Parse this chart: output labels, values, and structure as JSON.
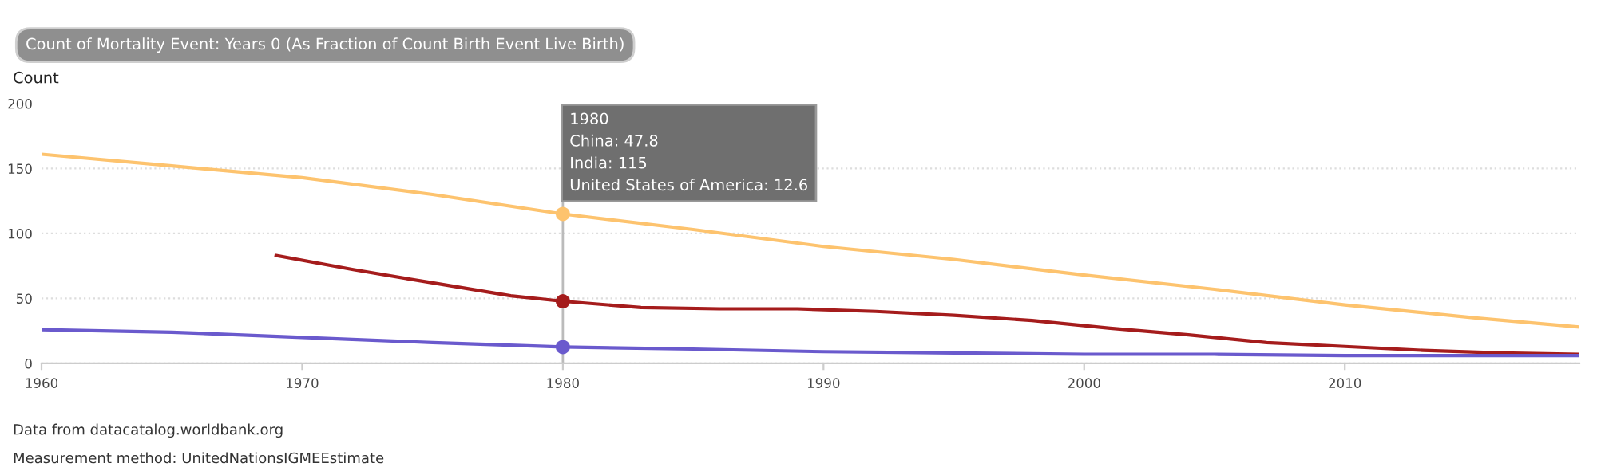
{
  "chart_data": {
    "type": "line",
    "title": "Count of Mortality Event: Years 0 (As Fraction of Count Birth Event Live Birth)",
    "ylabel": "Count",
    "xlim": [
      1960,
      2019
    ],
    "xticks": [
      1960,
      1970,
      1980,
      1990,
      2000,
      2010
    ],
    "ylim": [
      0,
      200
    ],
    "yticks": [
      0,
      50,
      100,
      150,
      200
    ],
    "grid": "y",
    "line_style": "solid",
    "ref_lines": [
      {
        "axis": "x",
        "value": 1980,
        "color": "#bbbbbb"
      }
    ],
    "annotations": [
      {
        "text": "1980\nChina: 47.8\nIndia: 115\nUnited States of America: 12.6",
        "x": 1980,
        "y": 200
      },
      "Data from datacatalog.worldbank.org",
      "Measurement method: UnitedNationsIGMEEstimate"
    ],
    "series": [
      {
        "color": "#fdc36e",
        "x": [
          1960,
          1965,
          1970,
          1975,
          1980,
          1985,
          1990,
          1995,
          2000,
          2005,
          2010,
          2015,
          2019
        ],
        "values": [
          161,
          152,
          143,
          130,
          115,
          103,
          90,
          80,
          68,
          57,
          45,
          35,
          28
        ]
      },
      {
        "color": "#a51c1c",
        "x": [
          1969,
          1972,
          1975,
          1978,
          1980,
          1983,
          1986,
          1989,
          1992,
          1995,
          1998,
          2001,
          2004,
          2007,
          2010,
          2013,
          2016,
          2019
        ],
        "values": [
          83,
          72,
          62,
          52,
          47.8,
          43,
          42,
          42,
          40,
          37,
          33,
          27,
          22,
          16,
          13,
          10,
          8,
          7
        ]
      },
      {
        "color": "#6a5acd",
        "x": [
          1960,
          1965,
          1970,
          1975,
          1980,
          1985,
          1990,
          1995,
          2000,
          2005,
          2010,
          2015,
          2019
        ],
        "values": [
          26,
          24,
          20,
          16,
          12.6,
          11,
          9,
          8,
          7,
          7,
          6,
          6,
          6
        ]
      },
      {
        "type": "scatter",
        "marker": "circle",
        "x": [
          1980,
          1980,
          1980
        ],
        "values": [
          47.8,
          115,
          12.6
        ],
        "colors": [
          "#a51c1c",
          "#fdc36e",
          "#6a5acd"
        ]
      }
    ]
  }
}
